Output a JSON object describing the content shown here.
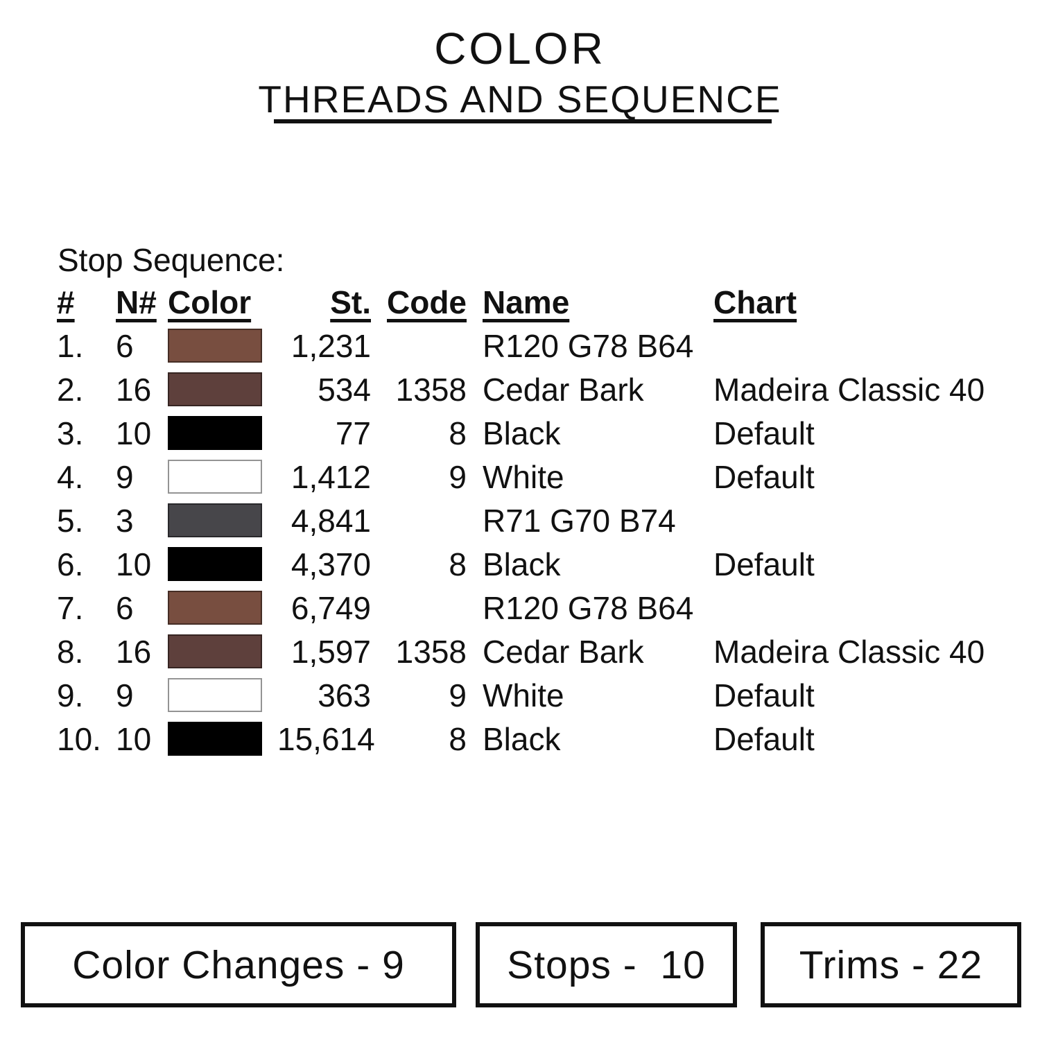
{
  "title": {
    "line1": "COLOR",
    "line2": "THREADS AND SEQUENCE"
  },
  "section_label": "Stop Sequence:",
  "table": {
    "headers": {
      "num": "#",
      "n": "N#",
      "color": "Color",
      "st": "St.",
      "code": "Code",
      "name": "Name",
      "chart": "Chart"
    },
    "rows": [
      {
        "num": "1.",
        "n": "6",
        "swatch": "#784E40",
        "st": "1,231",
        "code": "",
        "name": "R120 G78 B64",
        "chart": ""
      },
      {
        "num": "2.",
        "n": "16",
        "swatch": "#5E403C",
        "st": "534",
        "code": "1358",
        "name": "Cedar Bark",
        "chart": "Madeira Classic 40"
      },
      {
        "num": "3.",
        "n": "10",
        "swatch": "#000000",
        "st": "77",
        "code": "8",
        "name": "Black",
        "chart": "Default"
      },
      {
        "num": "4.",
        "n": "9",
        "swatch": "#FFFFFF",
        "st": "1,412",
        "code": "9",
        "name": "White",
        "chart": "Default"
      },
      {
        "num": "5.",
        "n": "3",
        "swatch": "#47464A",
        "st": "4,841",
        "code": "",
        "name": "R71 G70 B74",
        "chart": ""
      },
      {
        "num": "6.",
        "n": "10",
        "swatch": "#000000",
        "st": "4,370",
        "code": "8",
        "name": "Black",
        "chart": "Default"
      },
      {
        "num": "7.",
        "n": "6",
        "swatch": "#784E40",
        "st": "6,749",
        "code": "",
        "name": "R120 G78 B64",
        "chart": ""
      },
      {
        "num": "8.",
        "n": "16",
        "swatch": "#5E403C",
        "st": "1,597",
        "code": "1358",
        "name": "Cedar Bark",
        "chart": "Madeira Classic 40"
      },
      {
        "num": "9.",
        "n": "9",
        "swatch": "#FFFFFF",
        "st": "363",
        "code": "9",
        "name": "White",
        "chart": "Default"
      },
      {
        "num": "10.",
        "n": "10",
        "swatch": "#000000",
        "st": "15,614",
        "code": "8",
        "name": "Black",
        "chart": "Default"
      }
    ]
  },
  "summary_boxes": [
    {
      "label": "Color Changes - 9"
    },
    {
      "label": "Stops -  10"
    },
    {
      "label": "Trims - 22"
    }
  ],
  "colors": {
    "text": "#111111",
    "brown": "#784E40",
    "cedar_bark": "#5E403C",
    "black": "#000000",
    "white": "#FFFFFF",
    "gray": "#47464A"
  }
}
